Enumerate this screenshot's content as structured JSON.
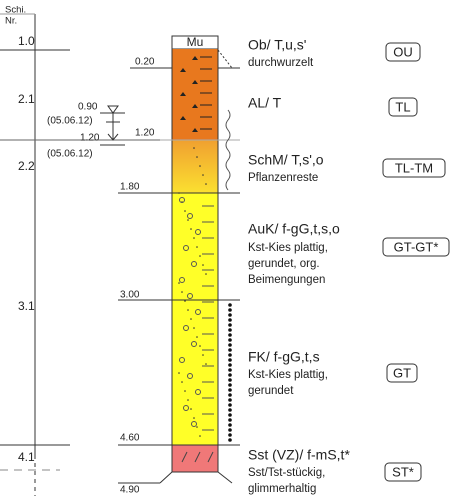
{
  "header": {
    "label_top": "Schi.",
    "label_bottom": "Nr.",
    "column": "Mu"
  },
  "layer_numbers": [
    "1.0",
    "2.1",
    "2.2",
    "3.1",
    "4.1"
  ],
  "water_levels": [
    {
      "depth": "0.90",
      "date": "(05.06.12)"
    },
    {
      "depth": "1.20",
      "date": "(05.06.12)"
    }
  ],
  "layers": [
    {
      "depth": "0.20",
      "lines": [
        "Ob/ T,u,s'",
        "durchwurzelt"
      ],
      "class": "OU"
    },
    {
      "depth": "1.20",
      "lines": [
        "AL/ T"
      ],
      "class": "TL"
    },
    {
      "depth": "1.80",
      "lines": [
        "SchM/ T,s',o",
        "Pflanzenreste"
      ],
      "class": "TL-TM"
    },
    {
      "depth": "3.00",
      "lines": [
        "AuK/ f-gG,t,s,o",
        "Kst-Kies plattig,",
        "gerundet, org.",
        "Beimengungen"
      ],
      "class": "GT-GT*"
    },
    {
      "depth": "4.60",
      "lines": [
        "FK/ f-gG,t,s",
        "Kst-Kies plattig,",
        "gerundet"
      ],
      "class": "GT"
    },
    {
      "depth": "4.90",
      "lines": [
        "Sst (VZ)/ f-mS,t*",
        "Sst/Tst-stückig,",
        "glimmerhaltig"
      ],
      "class": "ST*"
    }
  ]
}
